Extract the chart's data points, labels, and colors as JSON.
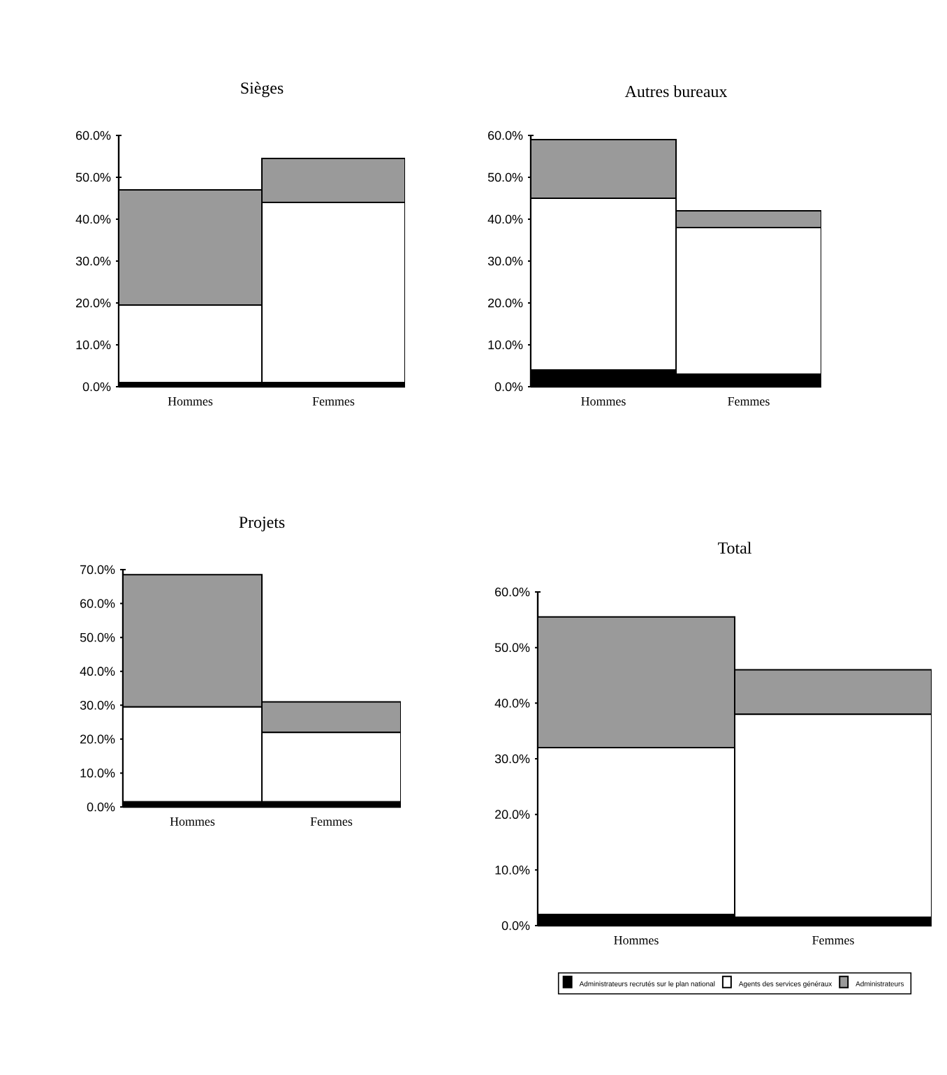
{
  "chart_data": [
    {
      "type": "bar",
      "title": "Sièges",
      "stacked": true,
      "categories": [
        "Hommes",
        "Femmes"
      ],
      "series": [
        {
          "color": "#000000",
          "values": [
            1,
            1
          ]
        },
        {
          "color": "#ffffff",
          "values": [
            18.5,
            43
          ]
        },
        {
          "color": "#9a9a9a",
          "values": [
            27.5,
            10.5
          ]
        }
      ],
      "ylim": [
        0,
        60
      ],
      "yticks": [
        {
          "value": 0,
          "label": "0.0%"
        },
        {
          "value": 10,
          "label": "10.0%"
        },
        {
          "value": 20,
          "label": "20.0%"
        },
        {
          "value": 30,
          "label": "30.0%"
        },
        {
          "value": 40,
          "label": "40.0%"
        },
        {
          "value": 50,
          "label": "50.0%"
        },
        {
          "value": 60,
          "label": "60.0%"
        }
      ]
    },
    {
      "type": "bar",
      "title": "Autres bureaux",
      "stacked": true,
      "categories": [
        "Hommes",
        "Femmes"
      ],
      "series": [
        {
          "color": "#000000",
          "values": [
            4,
            3
          ]
        },
        {
          "color": "#ffffff",
          "values": [
            41,
            35
          ]
        },
        {
          "color": "#9a9a9a",
          "values": [
            14,
            4
          ]
        }
      ],
      "ylim": [
        0,
        60
      ],
      "yticks": [
        {
          "value": 0,
          "label": "0.0%"
        },
        {
          "value": 10,
          "label": "10.0%"
        },
        {
          "value": 20,
          "label": "20.0%"
        },
        {
          "value": 30,
          "label": "30.0%"
        },
        {
          "value": 40,
          "label": "40.0%"
        },
        {
          "value": 50,
          "label": "50.0%"
        },
        {
          "value": 60,
          "label": "60.0%"
        }
      ]
    },
    {
      "type": "bar",
      "title": "Projets",
      "stacked": true,
      "categories": [
        "Hommes",
        "Femmes"
      ],
      "series": [
        {
          "color": "#000000",
          "values": [
            1.5,
            1.5
          ]
        },
        {
          "color": "#ffffff",
          "values": [
            28,
            20.5
          ]
        },
        {
          "color": "#9a9a9a",
          "values": [
            39,
            9
          ]
        }
      ],
      "ylim": [
        0,
        70
      ],
      "yticks": [
        {
          "value": 0,
          "label": "0.0%"
        },
        {
          "value": 10,
          "label": "10.0%"
        },
        {
          "value": 20,
          "label": "20.0%"
        },
        {
          "value": 30,
          "label": "30.0%"
        },
        {
          "value": 40,
          "label": "40.0%"
        },
        {
          "value": 50,
          "label": "50.0%"
        },
        {
          "value": 60,
          "label": "60.0%"
        },
        {
          "value": 70,
          "label": "70.0%"
        }
      ]
    },
    {
      "type": "bar",
      "title": "Total",
      "stacked": true,
      "categories": [
        "Hommes",
        "Femmes"
      ],
      "legend": "bottom",
      "series": [
        {
          "name": "Administrateurs recrutés sur le plan national",
          "color": "#000000",
          "values": [
            2,
            1.5
          ]
        },
        {
          "name": "Agents des services généraux",
          "color": "#ffffff",
          "values": [
            30,
            36.5
          ]
        },
        {
          "name": "Administrateurs",
          "color": "#9a9a9a",
          "values": [
            23.5,
            8
          ]
        }
      ],
      "ylim": [
        0,
        60
      ],
      "yticks": [
        {
          "value": 0,
          "label": "0.0%"
        },
        {
          "value": 10,
          "label": "10.0%"
        },
        {
          "value": 20,
          "label": "20.0%"
        },
        {
          "value": 30,
          "label": "30.0%"
        },
        {
          "value": 40,
          "label": "40.0%"
        },
        {
          "value": 50,
          "label": "50.0%"
        },
        {
          "value": 60,
          "label": "60.0%"
        }
      ]
    }
  ]
}
